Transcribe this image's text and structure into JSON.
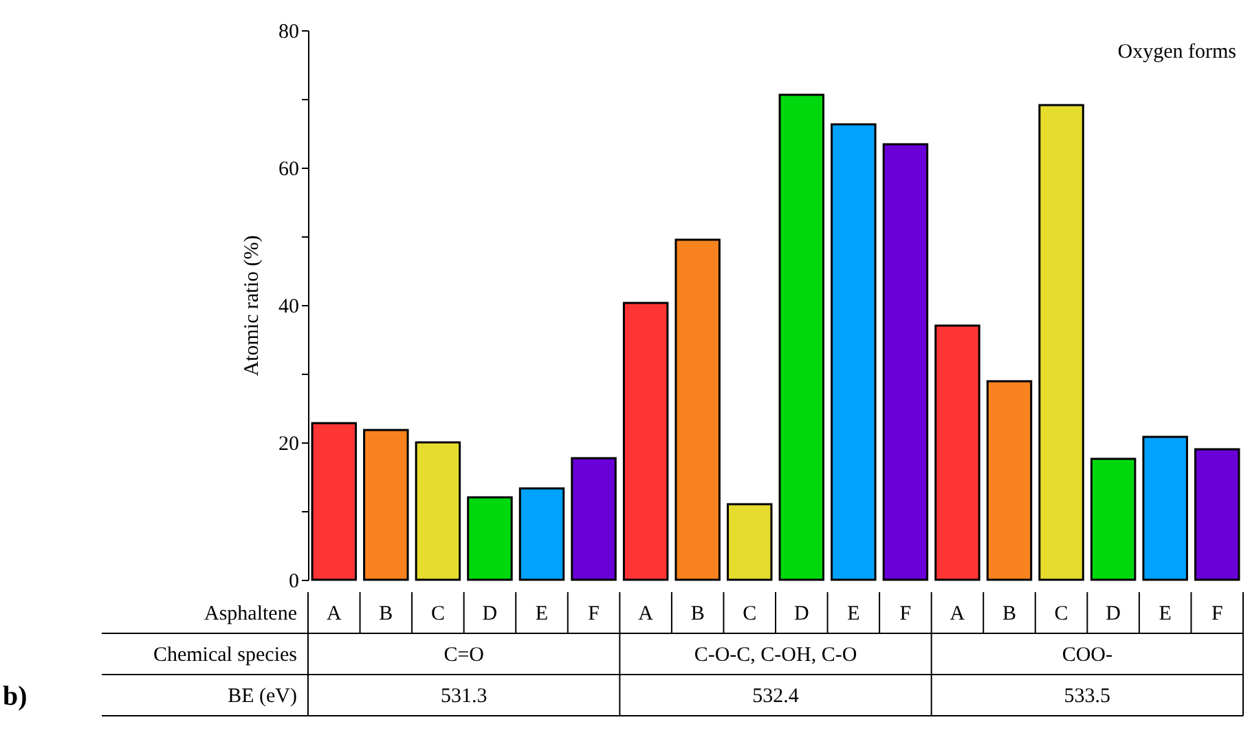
{
  "chart_data": {
    "type": "bar",
    "categories": [
      "A",
      "B",
      "C",
      "D",
      "E",
      "F",
      "A",
      "B",
      "C",
      "D",
      "E",
      "F",
      "A",
      "B",
      "C",
      "D",
      "E",
      "F"
    ],
    "values": [
      22.8,
      21.8,
      20,
      12,
      13.3,
      17.7,
      40.3,
      49.5,
      11,
      70.6,
      66.3,
      63.4,
      37,
      28.9,
      69.1,
      17.6,
      20.8,
      19
    ],
    "colors": [
      "#ff3535",
      "#f8831e",
      "#e6dc2e",
      "#00d80e",
      "#00a2ff",
      "#6a00d8",
      "#ff3535",
      "#f8831e",
      "#e6dc2e",
      "#00d80e",
      "#00a2ff",
      "#6a00d8",
      "#ff3535",
      "#f8831e",
      "#e6dc2e",
      "#00d80e",
      "#00a2ff",
      "#6a00d8"
    ],
    "ylabel": "Atomic ratio (%)",
    "xlabel": "Asphaltene",
    "ylim": [
      0,
      80
    ],
    "yticks": [
      0,
      {
        "value": 10,
        "label": null
      },
      20,
      {
        "value": 30,
        "label": null
      },
      40,
      {
        "value": 50,
        "label": null
      },
      60,
      {
        "value": 70,
        "label": null
      },
      80
    ],
    "grid": false,
    "annotations": [
      "Oxygen forms",
      "b)",
      "Chemical species",
      "C=O",
      "C-O-C, C-OH, C-O",
      "COO-",
      "BE (eV)",
      "531.3",
      "532.4",
      "533.5"
    ]
  }
}
